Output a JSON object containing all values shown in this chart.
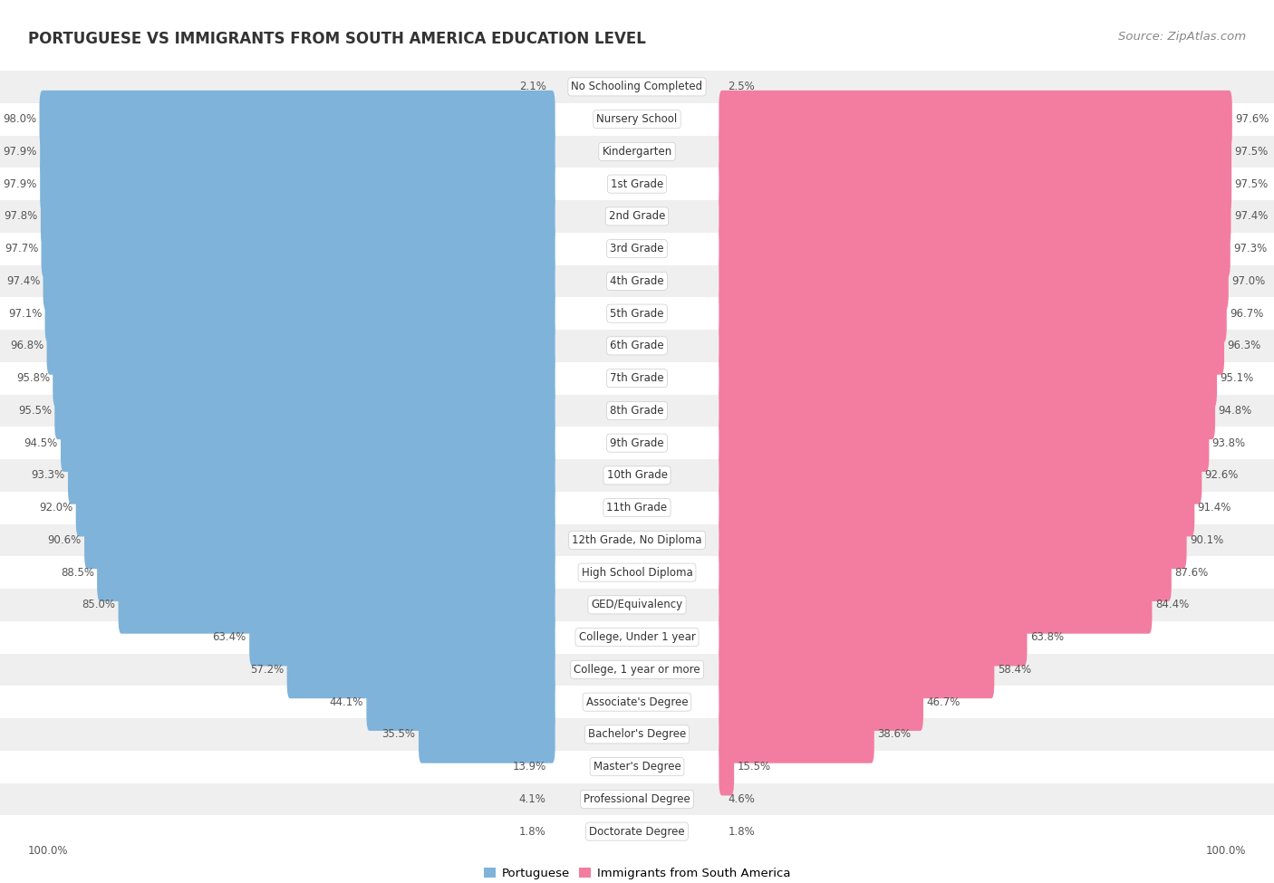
{
  "title": "PORTUGUESE VS IMMIGRANTS FROM SOUTH AMERICA EDUCATION LEVEL",
  "source": "Source: ZipAtlas.com",
  "categories": [
    "No Schooling Completed",
    "Nursery School",
    "Kindergarten",
    "1st Grade",
    "2nd Grade",
    "3rd Grade",
    "4th Grade",
    "5th Grade",
    "6th Grade",
    "7th Grade",
    "8th Grade",
    "9th Grade",
    "10th Grade",
    "11th Grade",
    "12th Grade, No Diploma",
    "High School Diploma",
    "GED/Equivalency",
    "College, Under 1 year",
    "College, 1 year or more",
    "Associate's Degree",
    "Bachelor's Degree",
    "Master's Degree",
    "Professional Degree",
    "Doctorate Degree"
  ],
  "portuguese": [
    2.1,
    98.0,
    97.9,
    97.9,
    97.8,
    97.7,
    97.4,
    97.1,
    96.8,
    95.8,
    95.5,
    94.5,
    93.3,
    92.0,
    90.6,
    88.5,
    85.0,
    63.4,
    57.2,
    44.1,
    35.5,
    13.9,
    4.1,
    1.8
  ],
  "immigrants": [
    2.5,
    97.6,
    97.5,
    97.5,
    97.4,
    97.3,
    97.0,
    96.7,
    96.3,
    95.1,
    94.8,
    93.8,
    92.6,
    91.4,
    90.1,
    87.6,
    84.4,
    63.8,
    58.4,
    46.7,
    38.6,
    15.5,
    4.6,
    1.8
  ],
  "portuguese_color": "#7fb3d9",
  "immigrants_color": "#f27da0",
  "row_bg_even": "#efefef",
  "row_bg_odd": "#ffffff",
  "title_fontsize": 12,
  "source_fontsize": 9.5,
  "label_fontsize": 8.5,
  "category_fontsize": 8.5,
  "legend_fontsize": 9.5,
  "footer_fontsize": 8.5
}
